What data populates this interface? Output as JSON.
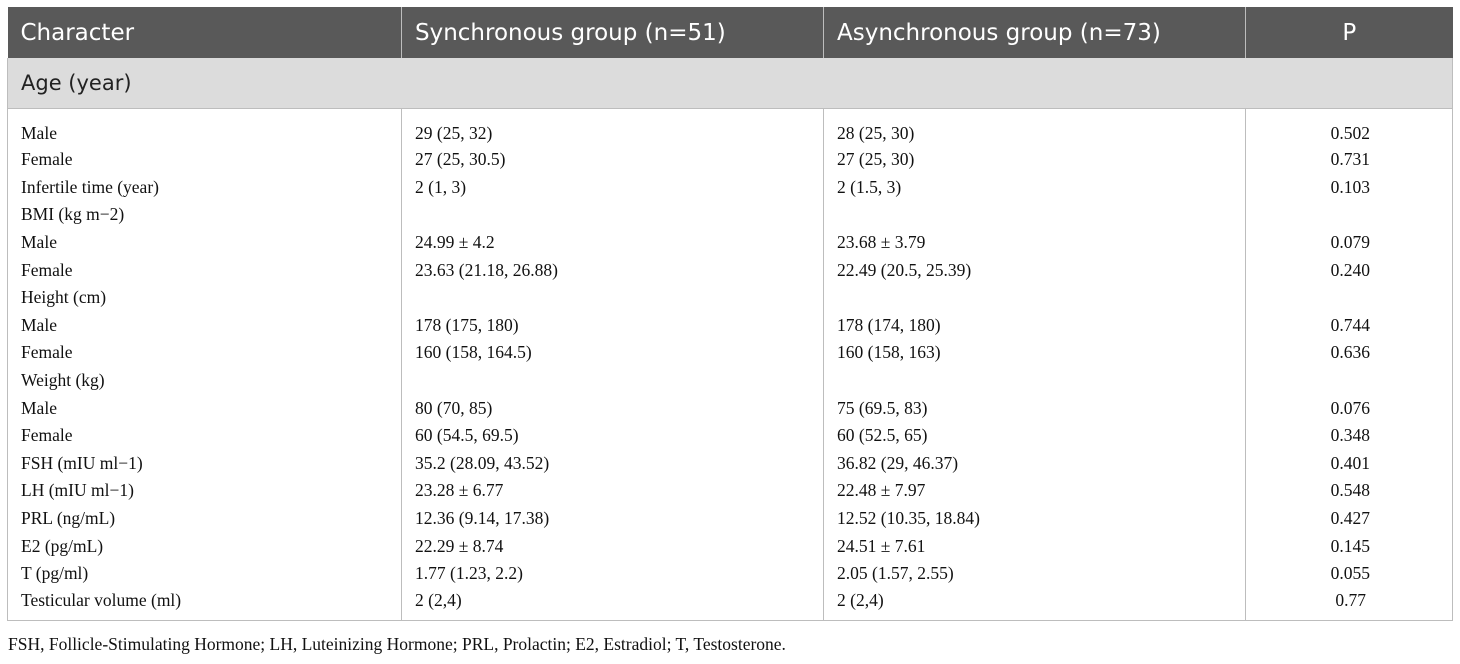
{
  "table": {
    "headers": [
      "Character",
      "Synchronous group (n=51)",
      "Asynchronous group (n=73)",
      "P"
    ],
    "section_label": "Age (year)",
    "rows": [
      {
        "label": "Male",
        "sync": "29 (25, 32)",
        "async": "28 (25, 30)",
        "p": "0.502"
      },
      {
        "label": "Female",
        "sync": "27 (25, 30.5)",
        "async": "27 (25, 30)",
        "p": "0.731"
      },
      {
        "label": "Infertile time (year)",
        "sync": "2 (1, 3)",
        "async": "2 (1.5, 3)",
        "p": "0.103"
      },
      {
        "label": "BMI (kg m−2)",
        "sync": "",
        "async": "",
        "p": ""
      },
      {
        "label": "Male",
        "sync": "24.99 ± 4.2",
        "async": "23.68 ± 3.79",
        "p": "0.079"
      },
      {
        "label": "Female",
        "sync": "23.63 (21.18, 26.88)",
        "async": "22.49 (20.5, 25.39)",
        "p": "0.240"
      },
      {
        "label": "Height (cm)",
        "sync": "",
        "async": "",
        "p": ""
      },
      {
        "label": "Male",
        "sync": "178 (175, 180)",
        "async": "178 (174, 180)",
        "p": "0.744"
      },
      {
        "label": "Female",
        "sync": "160 (158, 164.5)",
        "async": "160 (158, 163)",
        "p": "0.636"
      },
      {
        "label": "Weight (kg)",
        "sync": "",
        "async": "",
        "p": ""
      },
      {
        "label": "Male",
        "sync": "80 (70, 85)",
        "async": "75 (69.5, 83)",
        "p": "0.076"
      },
      {
        "label": "Female",
        "sync": "60 (54.5, 69.5)",
        "async": "60 (52.5, 65)",
        "p": "0.348"
      },
      {
        "label": "FSH (mIU ml−1)",
        "sync": "35.2 (28.09, 43.52)",
        "async": "36.82 (29, 46.37)",
        "p": "0.401"
      },
      {
        "label": "LH (mIU ml−1)",
        "sync": "23.28 ± 6.77",
        "async": "22.48 ± 7.97",
        "p": "0.548"
      },
      {
        "label": "PRL (ng/mL)",
        "sync": "12.36 (9.14, 17.38)",
        "async": "12.52 (10.35, 18.84)",
        "p": "0.427"
      },
      {
        "label": "E2 (pg/mL)",
        "sync": "22.29 ± 8.74",
        "async": "24.51 ± 7.61",
        "p": "0.145"
      },
      {
        "label": "T (pg/ml)",
        "sync": "1.77 (1.23, 2.2)",
        "async": "2.05 (1.57, 2.55)",
        "p": "0.055"
      },
      {
        "label": "Testicular volume (ml)",
        "sync": "2 (2,4)",
        "async": "2 (2,4)",
        "p": "0.77"
      }
    ]
  },
  "footnote": "FSH, Follicle-Stimulating Hormone; LH, Luteinizing Hormone; PRL, Prolactin; E2, Estradiol; T, Testosterone."
}
